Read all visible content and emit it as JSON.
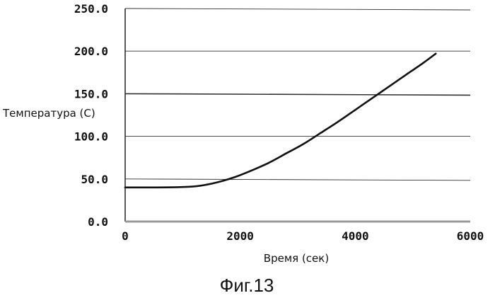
{
  "chart_data": {
    "type": "line",
    "title": "",
    "caption": "Фиг.13",
    "xlabel": "Время (сек)",
    "ylabel": "Температура (С)",
    "xlim": [
      0,
      6000
    ],
    "ylim": [
      0,
      250
    ],
    "x_ticks": [
      "0",
      "2000",
      "4000",
      "6000"
    ],
    "x_tick_values": [
      0,
      2000,
      4000,
      6000
    ],
    "y_ticks": [
      "0.0",
      "50.0",
      "100.0",
      "150.0",
      "200.0",
      "250.0"
    ],
    "y_tick_values": [
      0,
      50,
      100,
      150,
      200,
      250
    ],
    "grid": "horizontal",
    "series": [
      {
        "color": "#111111",
        "x": [
          0,
          500,
          1000,
          1300,
          1600,
          1900,
          2200,
          2500,
          2800,
          3100,
          3400,
          3700,
          4000,
          4300,
          4600,
          4900,
          5200,
          5400
        ],
        "y": [
          40,
          40,
          40.5,
          42,
          46,
          52,
          60,
          69,
          80,
          91,
          104,
          117,
          131,
          145,
          159,
          173,
          187,
          197
        ]
      }
    ]
  }
}
